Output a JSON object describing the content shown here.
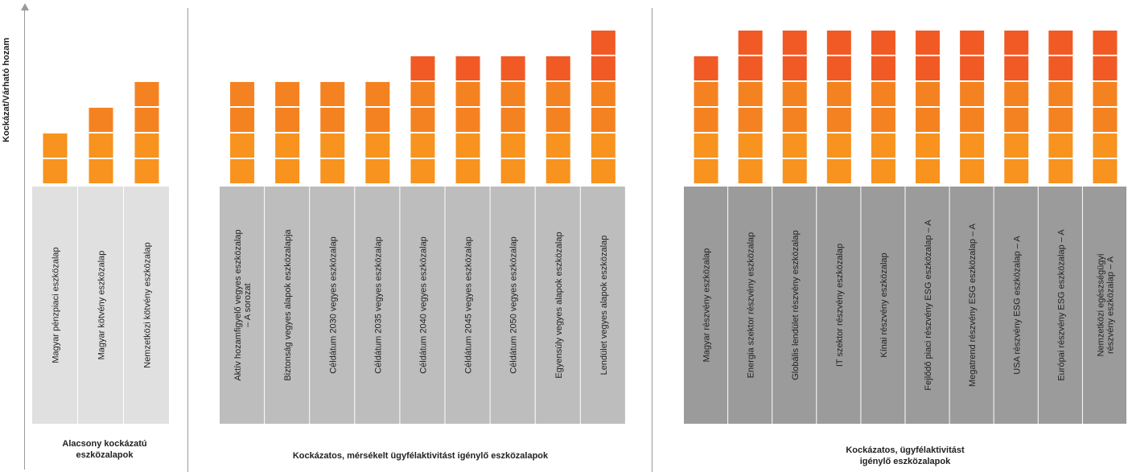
{
  "chart_data": {
    "type": "bar",
    "ylabel": "Kockázat/Várható hozam",
    "unit": "risk level (blocks)",
    "colors": {
      "block_light": "#f7931e",
      "block_mid": "#f58220",
      "block_dark": "#f15a24",
      "label_bg_low": "#e0e0e0",
      "label_bg_mid": "#bdbdbd",
      "label_bg_high": "#9b9b9b"
    },
    "groups": [
      {
        "title": "Alacsony kockázatú eszközalapok",
        "title_lines": [
          "Alacsony kockázatú",
          "eszközalapok"
        ],
        "categories": [
          {
            "name": "Magyar pénzpiaci eszközalap",
            "value": 2
          },
          {
            "name": "Magyar kötvény eszközalap",
            "value": 3
          },
          {
            "name": "Nemzetközi kötvény eszközalap",
            "value": 4
          }
        ]
      },
      {
        "title": "Kockázatos, mérsékelt ügyfélaktivitást igénylő eszközalapok",
        "title_lines": [
          "Kockázatos, mérsékelt ügyfélaktivitást igénylő eszközalapok"
        ],
        "categories": [
          {
            "name": "Aktív hozamfigyelő vegyes eszközalap – A sorozat",
            "lines": [
              "Aktív hozamfigyelő vegyes eszközalap",
              "– A sorozat"
            ],
            "value": 4
          },
          {
            "name": "Biztonság vegyes alapok eszközalapja",
            "value": 4
          },
          {
            "name": "Céldátum 2030 vegyes eszközalap",
            "value": 4
          },
          {
            "name": "Céldátum 2035 vegyes eszközalap",
            "value": 4
          },
          {
            "name": "Céldátum 2040 vegyes eszközalap",
            "value": 5
          },
          {
            "name": "Céldátum 2045 vegyes eszközalap",
            "value": 5
          },
          {
            "name": "Céldátum 2050 vegyes eszközalap",
            "value": 5
          },
          {
            "name": "Egyensúly vegyes alapok eszközalap",
            "value": 5
          },
          {
            "name": "Lendület vegyes alapok eszközalap",
            "value": 6
          }
        ]
      },
      {
        "title": "Kockázatos, ügyfélaktivitást igénylő eszközalapok",
        "title_lines": [
          "Kockázatos, ügyfélaktivitást",
          "igénylő eszközalapok"
        ],
        "categories": [
          {
            "name": "Magyar részvény eszközalap",
            "value": 5
          },
          {
            "name": "Energia szektor részvény eszközalap",
            "value": 6
          },
          {
            "name": "Globális lendület részvény eszközalap",
            "value": 6
          },
          {
            "name": "IT szektor részvény eszközalap",
            "value": 6
          },
          {
            "name": "Kínai részvény eszközalap",
            "value": 6
          },
          {
            "name": "Fejlődő piaci részvény ESG eszközalap – A",
            "value": 6
          },
          {
            "name": "Megatrend részvény ESG eszközalap – A",
            "value": 6
          },
          {
            "name": "USA részvény ESG eszközalap – A",
            "value": 6
          },
          {
            "name": "Európai részvény ESG eszközalap – A",
            "value": 6
          },
          {
            "name": "Nemzetközi egészségügyi részvény eszközalap – A",
            "lines": [
              "Nemzetközi egészségügyi",
              "részvény eszközalap – A"
            ],
            "value": 6
          }
        ]
      }
    ]
  }
}
